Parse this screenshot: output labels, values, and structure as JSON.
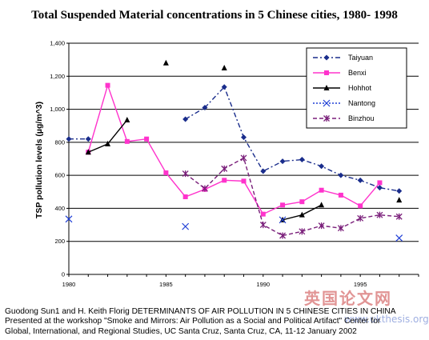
{
  "chart_data": {
    "type": "line",
    "title": "Total Suspended Material concentrations in 5 Chinese cities, 1980- 1998",
    "xlabel": "",
    "ylabel": "TSP pollution levels (µg/m^3)",
    "xlim": [
      1980,
      1998
    ],
    "ylim": [
      0,
      1400
    ],
    "x_ticks": [
      1980,
      1985,
      1990,
      1995
    ],
    "y_ticks": [
      "0",
      "200",
      "400",
      "600",
      "800",
      "1,000",
      "1,200",
      "1,400"
    ],
    "legend_position": "top-right",
    "series": [
      {
        "name": "Taiyuan",
        "color": "#1a2d8c",
        "marker": "diamond",
        "dash": "dashdot",
        "points": [
          [
            1980,
            820
          ],
          [
            1981,
            820
          ],
          [
            1986,
            940
          ],
          [
            1987,
            1010
          ],
          [
            1988,
            1135
          ],
          [
            1989,
            830
          ],
          [
            1990,
            625
          ],
          [
            1991,
            685
          ],
          [
            1992,
            695
          ],
          [
            1993,
            655
          ],
          [
            1994,
            600
          ],
          [
            1995,
            570
          ],
          [
            1996,
            525
          ],
          [
            1997,
            505
          ]
        ]
      },
      {
        "name": "Benxi",
        "color": "#ff33cc",
        "marker": "square",
        "dash": "solid",
        "points": [
          [
            1981,
            740
          ],
          [
            1982,
            1145
          ],
          [
            1983,
            805
          ],
          [
            1984,
            820
          ],
          [
            1985,
            615
          ],
          [
            1986,
            470
          ],
          [
            1987,
            515
          ],
          [
            1988,
            570
          ],
          [
            1989,
            565
          ],
          [
            1990,
            365
          ],
          [
            1991,
            420
          ],
          [
            1992,
            440
          ],
          [
            1993,
            510
          ],
          [
            1994,
            480
          ],
          [
            1995,
            415
          ],
          [
            1996,
            555
          ]
        ]
      },
      {
        "name": "Hohhot",
        "color": "#000000",
        "marker": "triangle",
        "dash": "solid",
        "points": [
          [
            1981,
            740
          ],
          [
            1982,
            790
          ],
          [
            1983,
            935
          ],
          [
            1985,
            1280
          ],
          [
            1988,
            1250
          ],
          [
            1991,
            330
          ],
          [
            1992,
            360
          ],
          [
            1993,
            420
          ],
          [
            1997,
            450
          ]
        ]
      },
      {
        "name": "Nantong",
        "color": "#1f3fd6",
        "marker": "x",
        "dash": "dotted",
        "points": [
          [
            1980,
            335
          ],
          [
            1986,
            290
          ],
          [
            1991,
            330
          ],
          [
            1997,
            220
          ]
        ]
      },
      {
        "name": "Binzhou",
        "color": "#7a1f7a",
        "marker": "asterisk",
        "dash": "dashed",
        "points": [
          [
            1986,
            610
          ],
          [
            1987,
            520
          ],
          [
            1988,
            640
          ],
          [
            1989,
            705
          ],
          [
            1990,
            300
          ],
          [
            1991,
            235
          ],
          [
            1992,
            260
          ],
          [
            1993,
            295
          ],
          [
            1994,
            280
          ],
          [
            1995,
            340
          ],
          [
            1996,
            360
          ],
          [
            1997,
            350
          ]
        ]
      }
    ]
  },
  "caption": {
    "line1": "Guodong Sun1 and H. Keith Florig DETERMINANTS OF AIR POLLUTION IN 5 CHINESE CITIES IN CHINA",
    "line2": "Presented at the workshop \"Smoke and Mirrors: Air Pollution as a Social and Political Artifact\" Center for",
    "line3": "Global, International, and Regional Studies, UC Santa Cruz, Santa Cruz, CA, 11-12 January 2002"
  },
  "watermark": {
    "text": "英国论文网",
    "sub": "www.ukthesis.org"
  }
}
